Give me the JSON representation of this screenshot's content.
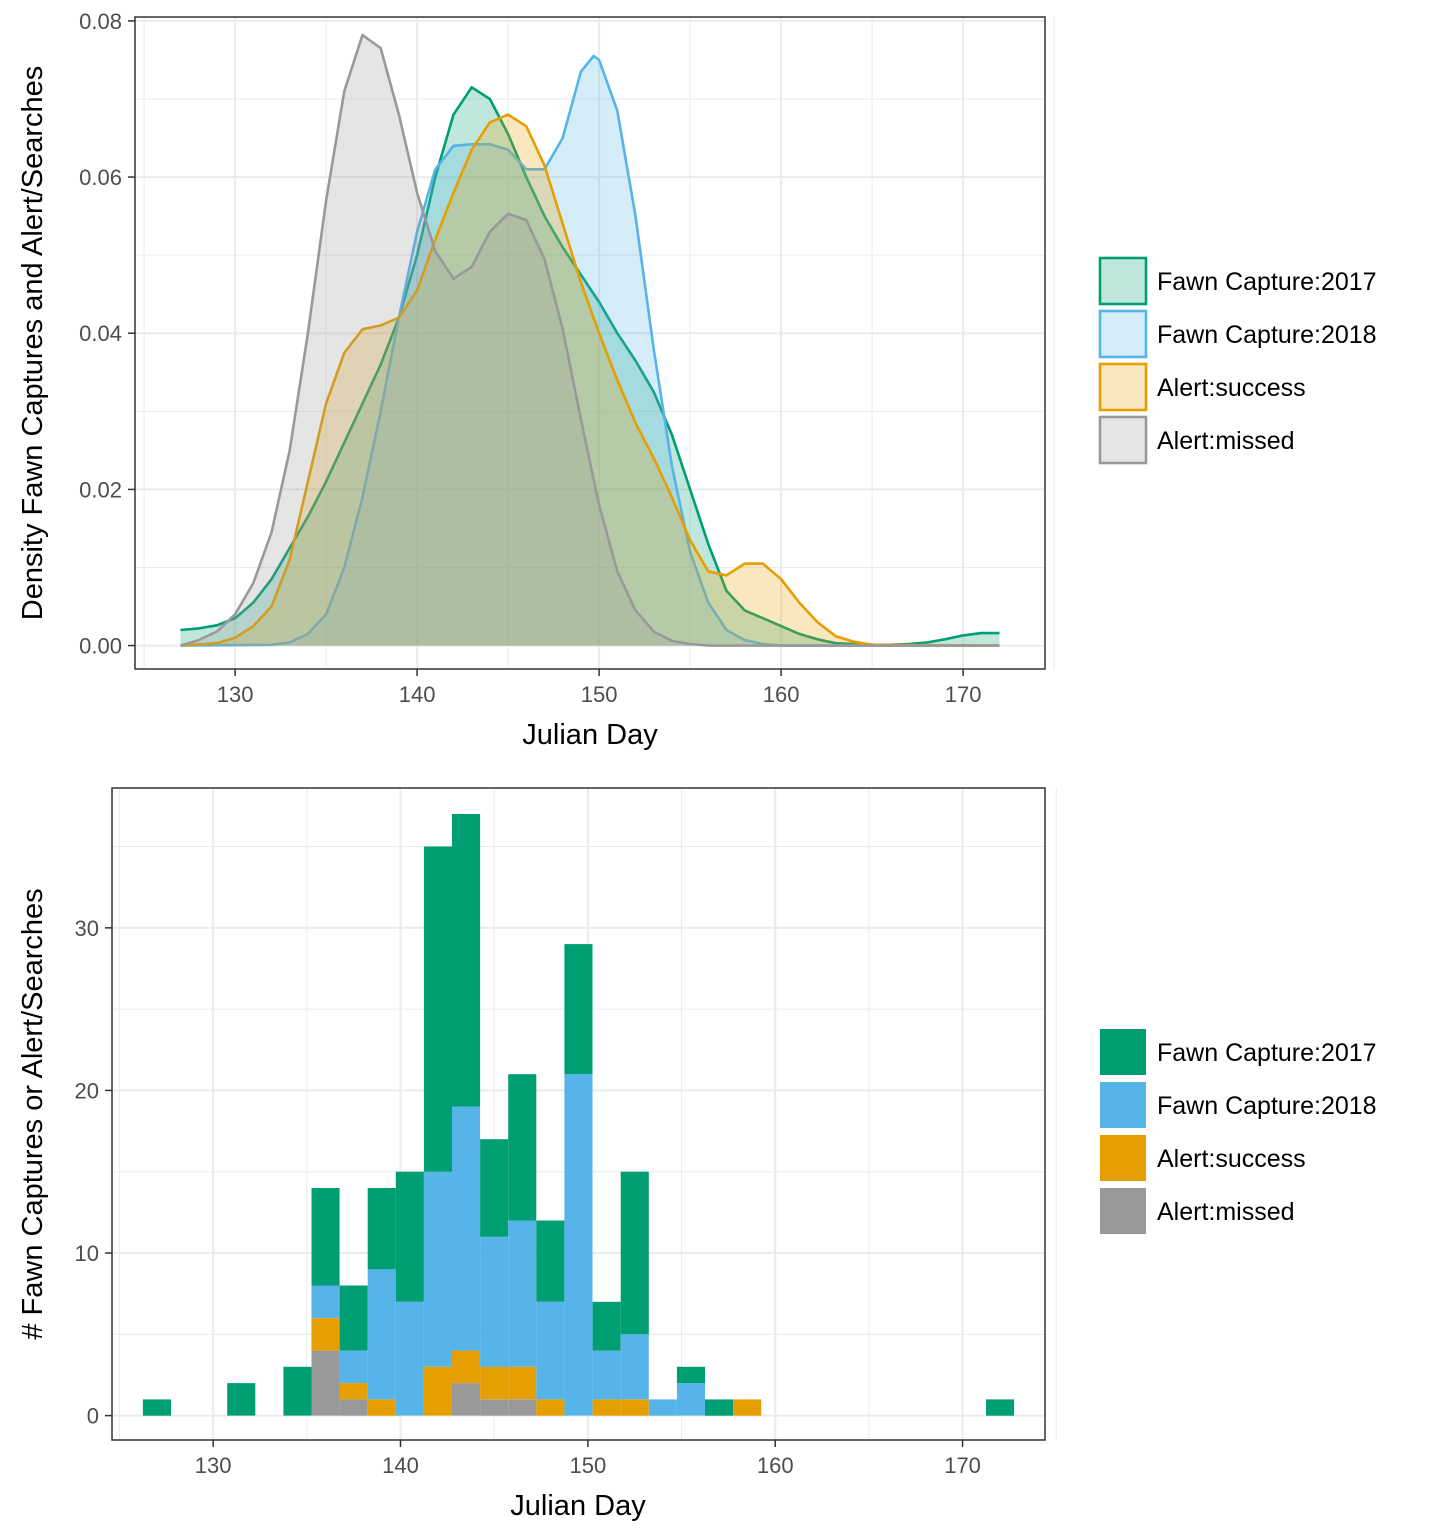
{
  "chart_data": [
    {
      "type": "area",
      "title": "",
      "xlabel": "Julian Day",
      "ylabel": "Density Fawn Captures and Alert/Searches",
      "xlim": [
        124.5,
        174.5
      ],
      "ylim": [
        -0.003,
        0.0805
      ],
      "xticks": [
        "130",
        "140",
        "150",
        "160",
        "170"
      ],
      "yticks": [
        "0.00",
        "0.02",
        "0.04",
        "0.06",
        "0.08"
      ],
      "legend_position": "right",
      "series": [
        {
          "name": "Fawn Capture:2017",
          "color": "#009E73",
          "points": [
            [
              127,
              0.002
            ],
            [
              128,
              0.0022
            ],
            [
              129,
              0.0026
            ],
            [
              130,
              0.0035
            ],
            [
              131,
              0.0055
            ],
            [
              132,
              0.0085
            ],
            [
              133,
              0.0125
            ],
            [
              134,
              0.0165
            ],
            [
              135,
              0.021
            ],
            [
              136,
              0.026
            ],
            [
              137,
              0.031
            ],
            [
              138,
              0.036
            ],
            [
              139,
              0.042
            ],
            [
              140,
              0.05
            ],
            [
              141,
              0.06
            ],
            [
              142,
              0.068
            ],
            [
              143,
              0.0715
            ],
            [
              144,
              0.07
            ],
            [
              145,
              0.0655
            ],
            [
              146,
              0.06
            ],
            [
              147,
              0.055
            ],
            [
              148,
              0.051
            ],
            [
              149,
              0.0475
            ],
            [
              150,
              0.044
            ],
            [
              151,
              0.04
            ],
            [
              152,
              0.0365
            ],
            [
              153,
              0.0325
            ],
            [
              154,
              0.027
            ],
            [
              155,
              0.02
            ],
            [
              156,
              0.013
            ],
            [
              157,
              0.007
            ],
            [
              158,
              0.0045
            ],
            [
              159,
              0.0035
            ],
            [
              160,
              0.0025
            ],
            [
              161,
              0.0015
            ],
            [
              162,
              0.0008
            ],
            [
              163,
              0.0003
            ],
            [
              165,
              0.0001
            ],
            [
              166,
              0.0001
            ],
            [
              167,
              0.0002
            ],
            [
              168,
              0.0004
            ],
            [
              169,
              0.0008
            ],
            [
              170,
              0.0013
            ],
            [
              171,
              0.0016
            ],
            [
              172,
              0.0016
            ]
          ]
        },
        {
          "name": "Fawn Capture:2018",
          "color": "#56B4E9",
          "points": [
            [
              127,
              0
            ],
            [
              132,
              0.0001
            ],
            [
              133,
              0.0004
            ],
            [
              134,
              0.0015
            ],
            [
              135,
              0.004
            ],
            [
              136,
              0.01
            ],
            [
              137,
              0.019
            ],
            [
              138,
              0.03
            ],
            [
              139,
              0.042
            ],
            [
              140,
              0.053
            ],
            [
              141,
              0.061
            ],
            [
              142,
              0.064
            ],
            [
              143,
              0.0642
            ],
            [
              144,
              0.0642
            ],
            [
              145,
              0.0635
            ],
            [
              146,
              0.061
            ],
            [
              147,
              0.061
            ],
            [
              148,
              0.065
            ],
            [
              149,
              0.0735
            ],
            [
              149.7,
              0.0755
            ],
            [
              150,
              0.075
            ],
            [
              151,
              0.0685
            ],
            [
              152,
              0.055
            ],
            [
              153,
              0.038
            ],
            [
              154,
              0.023
            ],
            [
              155,
              0.012
            ],
            [
              156,
              0.0055
            ],
            [
              157,
              0.002
            ],
            [
              158,
              0.0007
            ],
            [
              159,
              0.0002
            ],
            [
              160,
              0
            ],
            [
              172,
              0
            ]
          ]
        },
        {
          "name": "Alert:success",
          "color": "#E69F00",
          "points": [
            [
              127,
              0
            ],
            [
              129,
              0.0003
            ],
            [
              130,
              0.001
            ],
            [
              131,
              0.0025
            ],
            [
              132,
              0.005
            ],
            [
              133,
              0.011
            ],
            [
              134,
              0.021
            ],
            [
              135,
              0.031
            ],
            [
              136,
              0.0375
            ],
            [
              137,
              0.0405
            ],
            [
              138,
              0.041
            ],
            [
              139,
              0.042
            ],
            [
              140,
              0.0455
            ],
            [
              141,
              0.052
            ],
            [
              142,
              0.058
            ],
            [
              143,
              0.0635
            ],
            [
              144,
              0.067
            ],
            [
              145,
              0.068
            ],
            [
              146,
              0.0665
            ],
            [
              147,
              0.0615
            ],
            [
              148,
              0.054
            ],
            [
              149,
              0.0465
            ],
            [
              150,
              0.04
            ],
            [
              151,
              0.034
            ],
            [
              152,
              0.0285
            ],
            [
              153,
              0.024
            ],
            [
              154,
              0.019
            ],
            [
              155,
              0.0135
            ],
            [
              156,
              0.0095
            ],
            [
              157,
              0.009
            ],
            [
              158,
              0.0105
            ],
            [
              159,
              0.0105
            ],
            [
              160,
              0.0085
            ],
            [
              161,
              0.0055
            ],
            [
              162,
              0.003
            ],
            [
              163,
              0.0012
            ],
            [
              164,
              0.0005
            ],
            [
              165,
              0.0001
            ],
            [
              172,
              0
            ]
          ]
        },
        {
          "name": "Alert:missed",
          "color": "#999999",
          "points": [
            [
              127,
              0
            ],
            [
              128,
              0.0007
            ],
            [
              129,
              0.0018
            ],
            [
              130,
              0.004
            ],
            [
              131,
              0.008
            ],
            [
              132,
              0.0145
            ],
            [
              133,
              0.025
            ],
            [
              134,
              0.04
            ],
            [
              135,
              0.057
            ],
            [
              136,
              0.071
            ],
            [
              137,
              0.0782
            ],
            [
              138,
              0.0765
            ],
            [
              139,
              0.068
            ],
            [
              140,
              0.058
            ],
            [
              141,
              0.0505
            ],
            [
              142,
              0.047
            ],
            [
              143,
              0.0485
            ],
            [
              144,
              0.053
            ],
            [
              145,
              0.0553
            ],
            [
              146,
              0.0545
            ],
            [
              147,
              0.0495
            ],
            [
              148,
              0.0405
            ],
            [
              149,
              0.029
            ],
            [
              150,
              0.018
            ],
            [
              151,
              0.0095
            ],
            [
              152,
              0.0045
            ],
            [
              153,
              0.0018
            ],
            [
              154,
              0.0006
            ],
            [
              155,
              0.0002
            ],
            [
              156,
              0
            ],
            [
              172,
              0
            ]
          ]
        }
      ]
    },
    {
      "type": "bar",
      "stacked": true,
      "title": "",
      "xlabel": "Julian Day",
      "ylabel": "# Fawn Captures or Alert/Searches",
      "xlim": [
        124.6,
        174.4
      ],
      "ylim": [
        -1.5,
        38.6
      ],
      "xticks": [
        "130",
        "140",
        "150",
        "160",
        "170"
      ],
      "yticks": [
        "0",
        "10",
        "20",
        "30"
      ],
      "legend_position": "right",
      "bin_width": 1.5,
      "bin_centers": [
        127.0,
        128.5,
        130.0,
        131.5,
        133.0,
        134.5,
        136.0,
        137.5,
        139.0,
        140.5,
        142.0,
        143.5,
        145.0,
        146.5,
        148.0,
        149.5,
        151.0,
        152.5,
        154.0,
        155.5,
        157.0,
        158.5,
        160.0,
        161.5,
        163.0,
        164.5,
        166.0,
        167.5,
        169.0,
        170.5,
        172.0
      ],
      "series": [
        {
          "name": "Alert:missed",
          "color": "#999999",
          "values": [
            0,
            0,
            0,
            0,
            0,
            0,
            4,
            1,
            0,
            0,
            0,
            2,
            1,
            1,
            0,
            0,
            0,
            0,
            0,
            0,
            0,
            0,
            0,
            0,
            0,
            0,
            0,
            0,
            0,
            0,
            0
          ]
        },
        {
          "name": "Alert:success",
          "color": "#E69F00",
          "values": [
            0,
            0,
            0,
            0,
            0,
            0,
            2,
            1,
            1,
            0,
            3,
            2,
            2,
            2,
            1,
            0,
            1,
            1,
            0,
            0,
            0,
            1,
            0,
            0,
            0,
            0,
            0,
            0,
            0,
            0,
            0
          ]
        },
        {
          "name": "Fawn Capture:2018",
          "color": "#56B4E9",
          "values": [
            0,
            0,
            0,
            0,
            0,
            0,
            2,
            2,
            8,
            7,
            12,
            15,
            8,
            9,
            6,
            21,
            3,
            4,
            1,
            2,
            0,
            0,
            0,
            0,
            0,
            0,
            0,
            0,
            0,
            0,
            0
          ]
        },
        {
          "name": "Fawn Capture:2017",
          "color": "#009E73",
          "values": [
            1,
            0,
            0,
            2,
            0,
            3,
            6,
            4,
            5,
            8,
            20,
            18,
            6,
            9,
            5,
            8,
            3,
            10,
            0,
            1,
            1,
            0,
            0,
            0,
            0,
            0,
            0,
            0,
            0,
            0,
            1
          ]
        }
      ]
    }
  ],
  "legends": {
    "top": [
      "Fawn Capture:2017",
      "Fawn Capture:2018",
      "Alert:success",
      "Alert:missed"
    ],
    "bottom": [
      "Fawn Capture:2017",
      "Fawn Capture:2018",
      "Alert:success",
      "Alert:missed"
    ]
  },
  "colors": {
    "fawn_2017": "#009E73",
    "fawn_2018": "#56B4E9",
    "alert_success": "#E69F00",
    "alert_missed": "#999999",
    "grid": "#EBEBEB",
    "panel_border": "#333333"
  }
}
